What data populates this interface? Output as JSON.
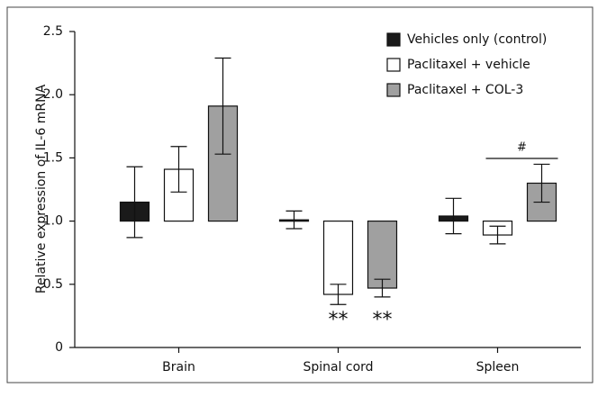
{
  "chart_data": {
    "type": "bar",
    "y_label": "Relative expression of IL-6 mRNA",
    "categories": [
      "Brain",
      "Spinal cord",
      "Spleen"
    ],
    "series": [
      {
        "name": "Vehicles only (control)",
        "color": "#1a1a1a",
        "values": [
          1.15,
          1.01,
          1.04
        ],
        "errors": [
          0.28,
          0.07,
          0.14
        ]
      },
      {
        "name": "Paclitaxel + vehicle",
        "color": "#ffffff",
        "values": [
          1.41,
          0.42,
          0.89
        ],
        "errors": [
          0.18,
          0.08,
          0.07
        ]
      },
      {
        "name": "Paclitaxel + COL-3",
        "color": "#a0a0a0",
        "values": [
          1.91,
          0.47,
          1.3
        ],
        "errors": [
          0.38,
          0.07,
          0.15
        ]
      }
    ],
    "baseline": 1,
    "annotations": [
      "**",
      "**",
      "#"
    ],
    "ylim": [
      0,
      2.5
    ],
    "yticks": [
      0,
      {
        "value": 0.5,
        "label": "0.5"
      },
      {
        "value": 1,
        "label": "1.0"
      },
      {
        "value": 1.5,
        "label": "1.5"
      },
      {
        "value": 2,
        "label": "2.0"
      },
      {
        "value": 2.5,
        "label": "2.5"
      }
    ],
    "legend": "top-right"
  }
}
